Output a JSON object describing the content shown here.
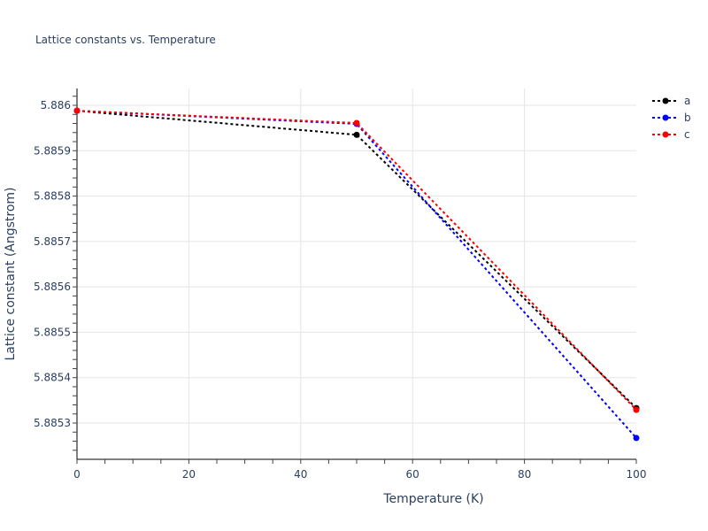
{
  "title": "Lattice constants vs. Temperature",
  "chart_data": {
    "type": "line",
    "title": "Lattice constants vs. Temperature",
    "xlabel": "Temperature (K)",
    "ylabel": "Lattice constant (Angstrom)",
    "x": [
      0,
      50,
      100
    ],
    "xlim": [
      0,
      100
    ],
    "ylim": [
      5.88522,
      5.88624
    ],
    "xticks": [
      "0",
      "20",
      "40",
      "60",
      "80",
      "100"
    ],
    "yticks": [
      "5.8853",
      "5.8854",
      "5.8855",
      "5.8856",
      "5.8857",
      "5.8858",
      "5.8859",
      "5.886"
    ],
    "grid": true,
    "legend_position": "top-right",
    "series": [
      {
        "name": "a",
        "color": "#000000",
        "values": [
          5.885988,
          5.885935,
          5.885333
        ]
      },
      {
        "name": "b",
        "color": "#0000ff",
        "values": [
          5.885988,
          5.885959,
          5.885267
        ]
      },
      {
        "name": "c",
        "color": "#ff0000",
        "values": [
          5.885988,
          5.885961,
          5.885329
        ]
      }
    ]
  }
}
